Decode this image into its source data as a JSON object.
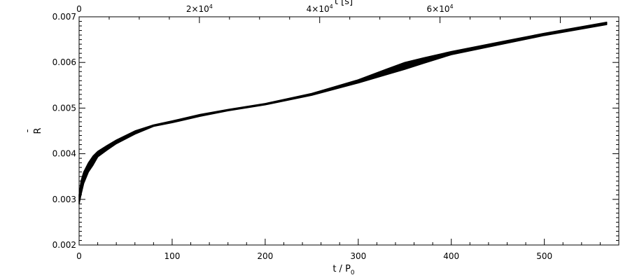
{
  "chart_data": {
    "type": "line",
    "style": {
      "line_color": "#000000",
      "background": "#ffffff",
      "band": "filled black envelope between lower and upper curves"
    },
    "xlabel": "t / P",
    "xlabel_sub": "0",
    "ylabel": "R",
    "ylabel_accent": "¯",
    "top_xlabel": "t [s]",
    "xlim": [
      0,
      580
    ],
    "ylim": [
      0.002,
      0.007
    ],
    "xticks": [
      {
        "value": 0,
        "label": "0"
      },
      {
        "value": 100,
        "label": "100"
      },
      {
        "value": 200,
        "label": "200"
      },
      {
        "value": 300,
        "label": "300"
      },
      {
        "value": 400,
        "label": "400"
      },
      {
        "value": 500,
        "label": "500"
      }
    ],
    "yticks": [
      {
        "value": 0.002,
        "label": "0.002"
      },
      {
        "value": 0.003,
        "label": "0.003"
      },
      {
        "value": 0.004,
        "label": "0.004"
      },
      {
        "value": 0.005,
        "label": "0.005"
      },
      {
        "value": 0.006,
        "label": "0.006"
      },
      {
        "value": 0.007,
        "label": "0.007"
      }
    ],
    "top_xticks": [
      {
        "value": 0,
        "label": "0"
      },
      {
        "value": 20000,
        "label": "2×10",
        "exp": "4"
      },
      {
        "value": 40000,
        "label": "4×10",
        "exp": "4"
      },
      {
        "value": 60000,
        "label": "6×10",
        "exp": "4"
      }
    ],
    "top_axis_scale": 154.7,
    "series": [
      {
        "x": [
          0,
          2,
          5,
          10,
          15,
          20,
          30,
          40,
          60,
          80,
          100,
          130,
          160,
          200,
          250,
          300,
          330,
          350,
          370,
          400,
          450,
          500,
          567
        ],
        "lower": [
          0.0029,
          0.0031,
          0.00335,
          0.0036,
          0.00375,
          0.00393,
          0.00408,
          0.00422,
          0.00443,
          0.0046,
          0.00468,
          0.00482,
          0.00494,
          0.00507,
          0.00528,
          0.00555,
          0.00573,
          0.00585,
          0.00598,
          0.00617,
          0.00638,
          0.00659,
          0.00683
        ],
        "upper": [
          0.0031,
          0.0034,
          0.0036,
          0.0038,
          0.00395,
          0.00405,
          0.00418,
          0.0043,
          0.0045,
          0.00463,
          0.00472,
          0.00486,
          0.00497,
          0.0051,
          0.00532,
          0.00562,
          0.00585,
          0.006,
          0.0061,
          0.00624,
          0.00644,
          0.00664,
          0.00688
        ]
      }
    ]
  }
}
